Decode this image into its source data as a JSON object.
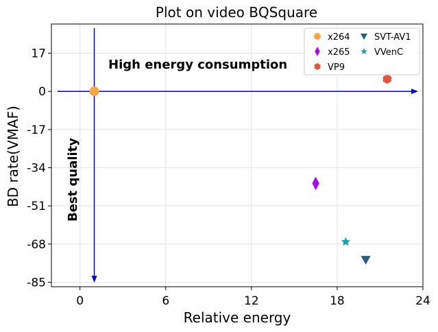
{
  "chart_data": {
    "type": "scatter",
    "title": "Plot on video BQSquare",
    "xlabel": "Relative energy",
    "ylabel": "BD rate(VMAF)",
    "xlim": [
      -2,
      24
    ],
    "ylim": [
      -87,
      30
    ],
    "xticks": [
      0,
      6,
      12,
      18,
      24
    ],
    "yticks": [
      17,
      0,
      -17,
      -34,
      -51,
      -68,
      -85
    ],
    "xtick_labels": [
      "0",
      "6",
      "12",
      "18",
      "24"
    ],
    "ytick_labels": [
      "17",
      "0",
      "-17",
      "-34",
      "-51",
      "-68",
      "-85"
    ],
    "grid": true,
    "legend_position": "top-right",
    "series": [
      {
        "name": "x264",
        "color": "#f4a742",
        "marker": "circle",
        "points": [
          {
            "x": 1,
            "y": 0
          }
        ]
      },
      {
        "name": "x265",
        "color": "#a20fe8",
        "marker": "thin-diamond",
        "points": [
          {
            "x": 16.5,
            "y": -41
          }
        ]
      },
      {
        "name": "VP9",
        "color": "#e4573f",
        "marker": "hexagon",
        "points": [
          {
            "x": 21.5,
            "y": 5.5
          }
        ]
      },
      {
        "name": "SVT-AV1",
        "color": "#24607e",
        "marker": "triangle-down",
        "points": [
          {
            "x": 20,
            "y": -75
          }
        ]
      },
      {
        "name": "VVenC",
        "color": "#1aa3b0",
        "marker": "star",
        "points": [
          {
            "x": 18.6,
            "y": -67
          }
        ]
      }
    ],
    "annotations": {
      "horizontal_text": "High energy consumption",
      "vertical_text": "Best quality",
      "arrow_color": "#0000cd"
    }
  }
}
